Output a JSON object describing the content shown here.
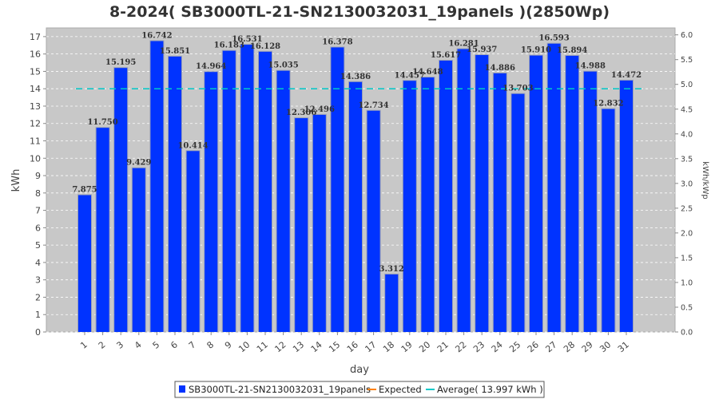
{
  "chart_data": {
    "type": "bar",
    "title": "8-2024( SB3000TL-21-SN2130032031_19panels )(2850Wp)",
    "xlabel": "day",
    "ylabel": "kWh",
    "y2label": "kWh/kWp",
    "categories": [
      "1",
      "2",
      "3",
      "4",
      "5",
      "6",
      "7",
      "8",
      "9",
      "10",
      "11",
      "12",
      "13",
      "14",
      "15",
      "16",
      "17",
      "18",
      "19",
      "20",
      "21",
      "22",
      "23",
      "24",
      "25",
      "26",
      "27",
      "28",
      "29",
      "30",
      "31"
    ],
    "series": [
      {
        "name": "SB3000TL-21-SN2130032031_19panels",
        "color": "#0033ff",
        "values": [
          7.875,
          11.75,
          15.195,
          9.429,
          16.742,
          15.851,
          10.414,
          14.964,
          16.183,
          16.531,
          16.128,
          15.035,
          12.306,
          12.496,
          16.378,
          14.386,
          12.734,
          3.312,
          14.457,
          14.648,
          15.617,
          16.281,
          15.937,
          14.886,
          13.703,
          15.91,
          16.593,
          15.894,
          14.988,
          12.832,
          14.472
        ],
        "labels": [
          "7.875",
          "11.750",
          "15.195",
          "9.429",
          "16.742",
          "15.851",
          "10.414",
          "14.964",
          "16.183",
          "16.531",
          "16.128",
          "15.035",
          "12.306",
          "12.496",
          "16.378",
          "14.386",
          "12.734",
          "3.312",
          "14.457",
          "14.648",
          "15.617",
          "16.281",
          "15.937",
          "14.886",
          "13.703",
          "15.910",
          "16.593",
          "15.894",
          "14.988",
          "12.832",
          "14.472"
        ]
      }
    ],
    "average": {
      "value": 13.997,
      "color": "#00c8c8"
    },
    "expected": {
      "color": "#ff8000"
    },
    "ylim": [
      0,
      17.5
    ],
    "yticks": [
      0,
      1,
      2,
      3,
      4,
      5,
      6,
      7,
      8,
      9,
      10,
      11,
      12,
      13,
      14,
      15,
      16,
      17
    ],
    "y2lim": [
      0,
      6.14
    ],
    "y2ticks": [
      "0.0",
      "0.5",
      "1.0",
      "1.5",
      "2.0",
      "2.5",
      "3.0",
      "3.5",
      "4.0",
      "4.5",
      "5.0",
      "5.5",
      "6.0"
    ],
    "grid": true,
    "legend": {
      "placement": "bottom",
      "items": [
        "SB3000TL-21-SN2130032031_19panels",
        "Expected",
        "Average( 13.997 kWh )"
      ]
    }
  }
}
